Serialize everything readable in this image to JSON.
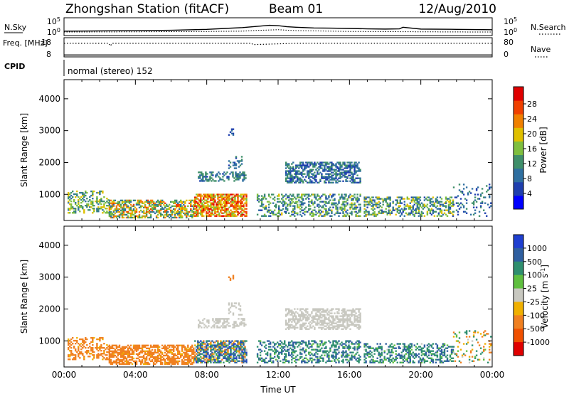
{
  "header": {
    "station": "Zhongshan Station (fitACF)",
    "beam": "Beam 01",
    "date": "12/Aug/2010"
  },
  "colors": {
    "power_scale": [
      "#0000ff",
      "#1f3fae",
      "#2f6fa0",
      "#3f8f6a",
      "#7fbf3f",
      "#e0c000",
      "#f08000",
      "#f04000",
      "#e00000"
    ],
    "velocity_scale": [
      "#1f3fd0",
      "#2f5fa0",
      "#2f8f6f",
      "#5fbf3f",
      "#c8c8c0",
      "#f0b000",
      "#f08020",
      "#f05000",
      "#e00000"
    ]
  },
  "chart_data": [
    {
      "type": "line",
      "name": "noise-panel",
      "left_label": "N.Sky",
      "right_label": "N.Search",
      "left_ticks": [
        "10^5",
        "10^0"
      ],
      "right_ticks": [
        "10^5",
        "10^0"
      ],
      "series": [
        {
          "name": "N.Sky",
          "style": "solid",
          "x": [
            0,
            2,
            4,
            6,
            8,
            9,
            10,
            11,
            11.5,
            12,
            12.5,
            13,
            14,
            15,
            16,
            17,
            18,
            18.8,
            19,
            20,
            22,
            24
          ],
          "y": [
            10,
            12,
            15,
            20,
            40,
            80,
            150,
            500,
            900,
            700,
            300,
            200,
            120,
            100,
            80,
            60,
            50,
            60,
            200,
            50,
            40,
            30
          ]
        },
        {
          "name": "N.Search",
          "style": "dotted",
          "x": [
            0,
            4,
            8,
            10,
            11,
            12,
            13,
            16,
            20,
            24
          ],
          "y": [
            5,
            6,
            8,
            10,
            20,
            30,
            15,
            8,
            6,
            5
          ]
        }
      ]
    },
    {
      "type": "line",
      "name": "freq-panel",
      "left_label": "Freq. [MHz]",
      "right_label": "Nave",
      "left_ticks": [
        "18",
        "8"
      ],
      "right_ticks": [
        "80",
        "0"
      ],
      "series": [
        {
          "name": "Freq.",
          "style": "dotted",
          "x": [
            0,
            2.5,
            2.6,
            2.7,
            4,
            6,
            10.5,
            10.6,
            13,
            14,
            24
          ],
          "y": [
            17.5,
            17.5,
            15.5,
            17.5,
            17.5,
            17.5,
            17.5,
            16.5,
            17.5,
            17.5,
            17.5
          ]
        },
        {
          "name": "Nave",
          "style": "solid",
          "x": [
            0,
            24
          ],
          "y": [
            3,
            3
          ]
        }
      ]
    },
    {
      "type": "text",
      "name": "cpid-strip",
      "label": "CPID",
      "program": "normal (stereo) 152"
    },
    {
      "type": "heatmap",
      "name": "power-panel",
      "ylabel": "Slant Range [km]",
      "ylim": [
        180,
        4600
      ],
      "yticks": [
        1000,
        2000,
        3000,
        4000
      ],
      "colorbar_label": "Power [dB]",
      "colorbar_ticks": [
        "28",
        "24",
        "20",
        "16",
        "12",
        "8",
        "4"
      ],
      "echo_regions": [
        {
          "t": [
            0.2,
            2.5
          ],
          "r": [
            400,
            1100
          ],
          "value_range": [
            8,
            20
          ],
          "density": 0.35
        },
        {
          "t": [
            2.5,
            7.3
          ],
          "r": [
            250,
            800
          ],
          "value_range": [
            8,
            26
          ],
          "density": 0.6
        },
        {
          "t": [
            7.3,
            10.2
          ],
          "r": [
            300,
            1000
          ],
          "value_range": [
            14,
            30
          ],
          "density": 0.7
        },
        {
          "t": [
            7.5,
            10.2
          ],
          "r": [
            1400,
            1700
          ],
          "value_range": [
            6,
            14
          ],
          "density": 0.45
        },
        {
          "t": [
            9.2,
            10.0
          ],
          "r": [
            1800,
            2200
          ],
          "value_range": [
            6,
            12
          ],
          "density": 0.3
        },
        {
          "t": [
            9.2,
            9.5
          ],
          "r": [
            2800,
            3100
          ],
          "value_range": [
            4,
            10
          ],
          "density": 0.3
        },
        {
          "t": [
            10.8,
            16.6
          ],
          "r": [
            300,
            1000
          ],
          "value_range": [
            6,
            18
          ],
          "density": 0.4
        },
        {
          "t": [
            12.4,
            16.6
          ],
          "r": [
            1350,
            2000
          ],
          "value_range": [
            4,
            14
          ],
          "density": 0.55
        },
        {
          "t": [
            16.8,
            21.8
          ],
          "r": [
            300,
            900
          ],
          "value_range": [
            6,
            20
          ],
          "density": 0.45
        },
        {
          "t": [
            21.8,
            23.9
          ],
          "r": [
            300,
            1300
          ],
          "value_range": [
            4,
            14
          ],
          "density": 0.15
        }
      ]
    },
    {
      "type": "heatmap",
      "name": "velocity-panel",
      "ylabel": "Slant Range [km]",
      "ylim": [
        180,
        4600
      ],
      "yticks": [
        1000,
        2000,
        3000,
        4000
      ],
      "xlabel": "Time UT",
      "xticks": [
        "00:00",
        "04:00",
        "08:00",
        "12:00",
        "16:00",
        "20:00",
        "00:00"
      ],
      "colorbar_label": "Velocity [m s^-1]",
      "colorbar_ticks": [
        "1000",
        "500",
        "100",
        "25",
        "-25",
        "-100",
        "-500",
        "-1000"
      ],
      "echo_regions": [
        {
          "t": [
            0.2,
            2.5
          ],
          "r": [
            400,
            1100
          ],
          "value_range": [
            -300,
            -80
          ],
          "density": 0.35
        },
        {
          "t": [
            2.5,
            7.3
          ],
          "r": [
            250,
            850
          ],
          "value_range": [
            -300,
            -80
          ],
          "density": 0.65
        },
        {
          "t": [
            7.3,
            10.2
          ],
          "r": [
            300,
            1000
          ],
          "value_range": [
            -250,
            600
          ],
          "density": 0.7
        },
        {
          "t": [
            7.5,
            10.2
          ],
          "r": [
            1400,
            1700
          ],
          "value_range": [
            -20,
            20
          ],
          "density": 0.45
        },
        {
          "t": [
            9.2,
            10.0
          ],
          "r": [
            1800,
            2200
          ],
          "value_range": [
            -20,
            20
          ],
          "density": 0.3
        },
        {
          "t": [
            9.2,
            9.5
          ],
          "r": [
            2800,
            3100
          ],
          "value_range": [
            -400,
            -100
          ],
          "density": 0.3
        },
        {
          "t": [
            10.8,
            16.6
          ],
          "r": [
            300,
            1000
          ],
          "value_range": [
            20,
            400
          ],
          "density": 0.4
        },
        {
          "t": [
            12.4,
            16.6
          ],
          "r": [
            1350,
            2000
          ],
          "value_range": [
            -20,
            20
          ],
          "density": 0.55
        },
        {
          "t": [
            16.8,
            21.8
          ],
          "r": [
            300,
            900
          ],
          "value_range": [
            20,
            400
          ],
          "density": 0.45
        },
        {
          "t": [
            21.8,
            23.9
          ],
          "r": [
            300,
            1300
          ],
          "value_range": [
            -200,
            200
          ],
          "density": 0.15
        }
      ]
    }
  ]
}
